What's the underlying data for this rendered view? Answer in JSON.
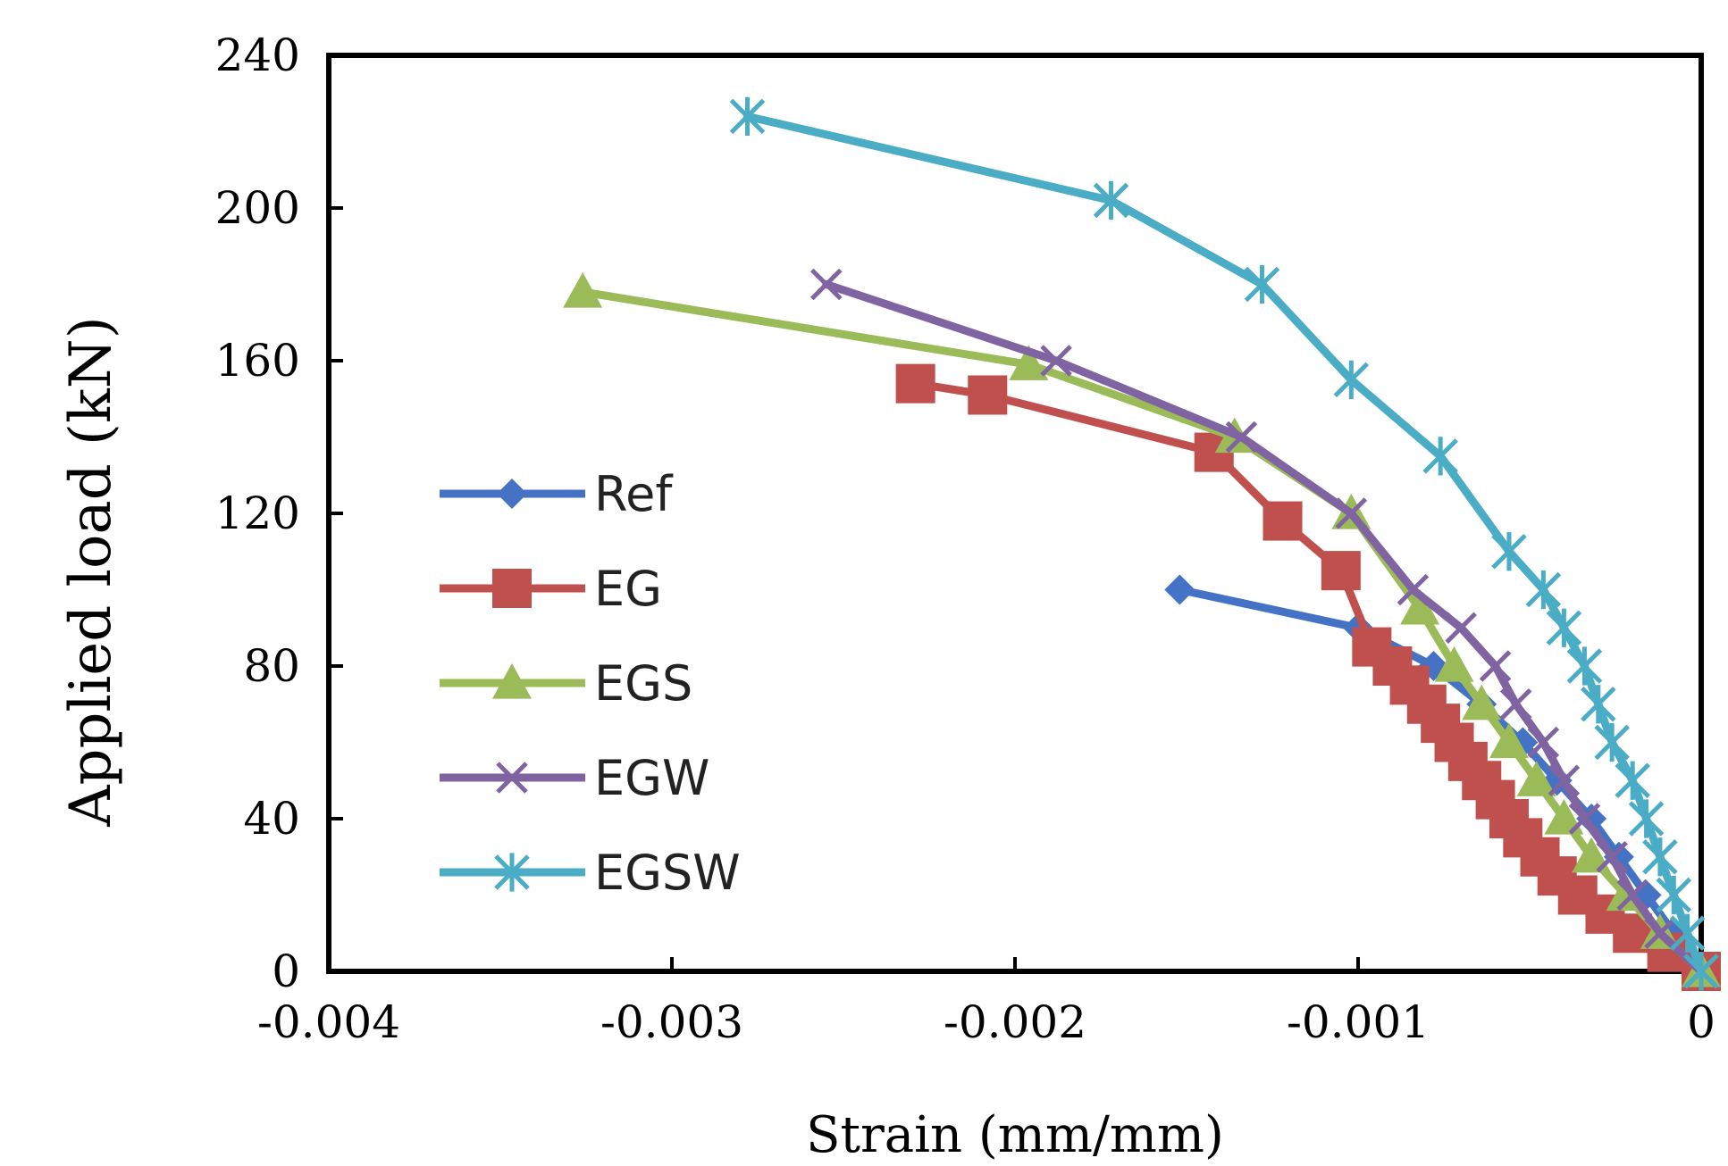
{
  "chart_data": {
    "type": "line",
    "xlabel": "Strain (mm/mm)",
    "ylabel": "Applied load (kN)",
    "xlim": [
      -0.004,
      0
    ],
    "ylim": [
      0,
      240
    ],
    "xticks": [
      "-0.004",
      "-0.003",
      "-0.002",
      "-0.001",
      "0"
    ],
    "yticks": [
      "0",
      "40",
      "80",
      "120",
      "160",
      "200",
      "240"
    ],
    "grid": false,
    "legend_position": "left",
    "series": [
      {
        "name": "Ref",
        "color": "#4472C4",
        "marker": "diamond",
        "points": [
          [
            0,
            0
          ],
          [
            -8e-05,
            10
          ],
          [
            -0.00016,
            20
          ],
          [
            -0.00024,
            30
          ],
          [
            -0.00032,
            40
          ],
          [
            -0.00042,
            50
          ],
          [
            -0.00052,
            60
          ],
          [
            -0.00064,
            70
          ],
          [
            -0.00078,
            80
          ],
          [
            -0.001,
            90
          ],
          [
            -0.00152,
            100
          ]
        ]
      },
      {
        "name": "EG",
        "color": "#C0504D",
        "marker": "square",
        "points": [
          [
            0,
            0
          ],
          [
            -0.0001,
            5
          ],
          [
            -0.0002,
            10
          ],
          [
            -0.00028,
            15
          ],
          [
            -0.00036,
            20
          ],
          [
            -0.00042,
            25
          ],
          [
            -0.00047,
            30
          ],
          [
            -0.00052,
            35
          ],
          [
            -0.00056,
            40
          ],
          [
            -0.0006,
            45
          ],
          [
            -0.00064,
            50
          ],
          [
            -0.00068,
            55
          ],
          [
            -0.00072,
            60
          ],
          [
            -0.00076,
            65
          ],
          [
            -0.0008,
            70
          ],
          [
            -0.00085,
            75
          ],
          [
            -0.0009,
            80
          ],
          [
            -0.00096,
            85
          ],
          [
            -0.00105,
            105
          ],
          [
            -0.00122,
            118
          ],
          [
            -0.00142,
            136
          ],
          [
            -0.00208,
            151
          ],
          [
            -0.00229,
            154
          ]
        ]
      },
      {
        "name": "EGS",
        "color": "#9BBB59",
        "marker": "triangle",
        "points": [
          [
            0,
            0
          ],
          [
            -0.00012,
            10
          ],
          [
            -0.00022,
            20
          ],
          [
            -0.00032,
            30
          ],
          [
            -0.0004,
            40
          ],
          [
            -0.00048,
            50
          ],
          [
            -0.00056,
            60
          ],
          [
            -0.00064,
            70
          ],
          [
            -0.00072,
            80
          ],
          [
            -0.00082,
            95
          ],
          [
            -0.00102,
            120
          ],
          [
            -0.00136,
            140
          ],
          [
            -0.00196,
            159
          ],
          [
            -0.00326,
            178
          ]
        ]
      },
      {
        "name": "EGW",
        "color": "#8064A2",
        "marker": "x",
        "points": [
          [
            0,
            0
          ],
          [
            -0.00012,
            10
          ],
          [
            -0.0002,
            20
          ],
          [
            -0.00026,
            30
          ],
          [
            -0.00034,
            40
          ],
          [
            -0.0004,
            50
          ],
          [
            -0.00046,
            60
          ],
          [
            -0.00054,
            70
          ],
          [
            -0.0006,
            80
          ],
          [
            -0.0007,
            90
          ],
          [
            -0.00084,
            100
          ],
          [
            -0.00102,
            120
          ],
          [
            -0.00134,
            140
          ],
          [
            -0.00188,
            160
          ],
          [
            -0.00255,
            180
          ]
        ]
      },
      {
        "name": "EGSW",
        "color": "#4BACC6",
        "marker": "asterisk",
        "points": [
          [
            0,
            0
          ],
          [
            -4e-05,
            10
          ],
          [
            -8e-05,
            20
          ],
          [
            -0.00012,
            30
          ],
          [
            -0.00016,
            40
          ],
          [
            -0.0002,
            50
          ],
          [
            -0.00026,
            60
          ],
          [
            -0.0003,
            70
          ],
          [
            -0.00034,
            80
          ],
          [
            -0.0004,
            90
          ],
          [
            -0.00046,
            100
          ],
          [
            -0.00056,
            110
          ],
          [
            -0.00076,
            135
          ],
          [
            -0.00102,
            155
          ],
          [
            -0.00128,
            180
          ],
          [
            -0.00172,
            202
          ],
          [
            -0.00278,
            224
          ]
        ]
      }
    ]
  }
}
